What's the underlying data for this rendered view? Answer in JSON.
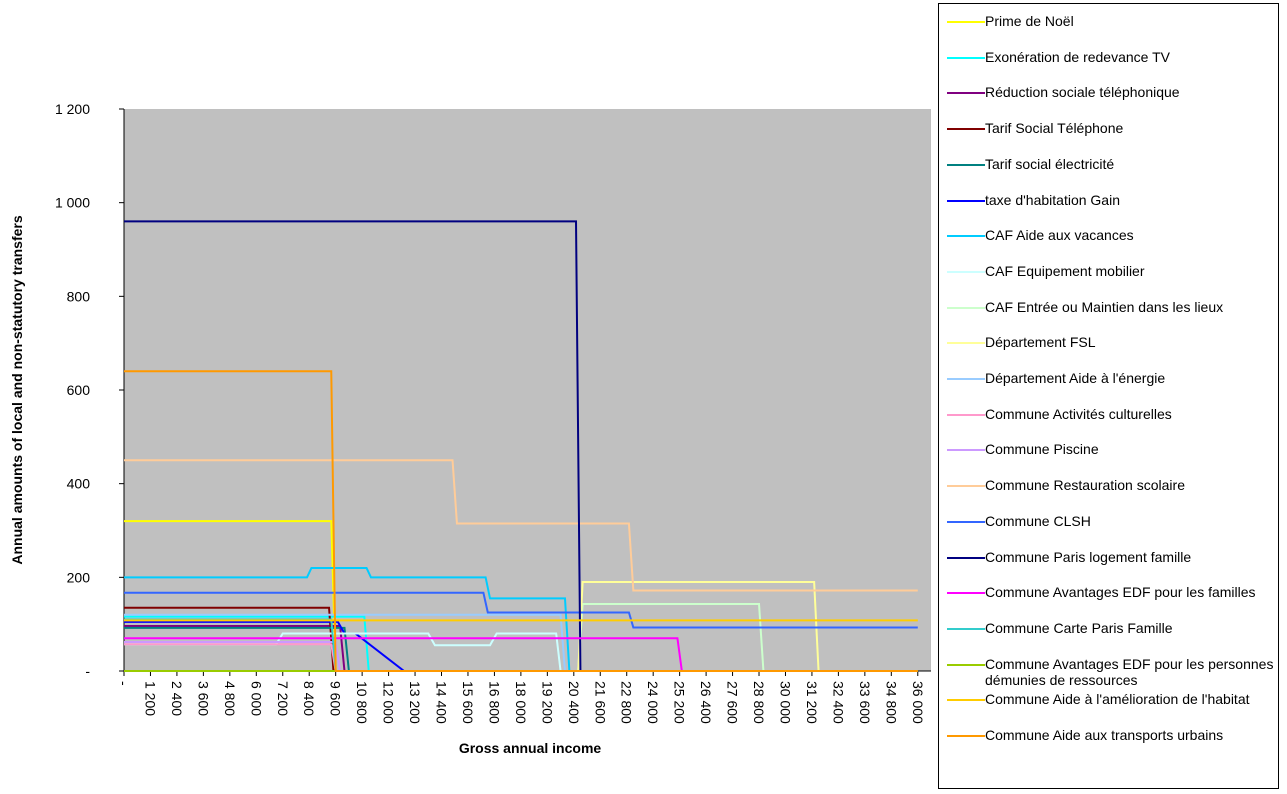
{
  "chart_data": {
    "type": "line",
    "x_label": "Gross annual income",
    "y_label": "Annual amounts of local and non-statutory transfers",
    "xlim": [
      0,
      36600
    ],
    "ylim": [
      0,
      1200
    ],
    "xticks": [
      {
        "value": 0,
        "label": "-"
      },
      {
        "value": 1200,
        "label": "1 200"
      },
      {
        "value": 2400,
        "label": "2 400"
      },
      {
        "value": 3600,
        "label": "3 600"
      },
      {
        "value": 4800,
        "label": "4 800"
      },
      {
        "value": 6000,
        "label": "6 000"
      },
      {
        "value": 7200,
        "label": "7 200"
      },
      {
        "value": 8400,
        "label": "8 400"
      },
      {
        "value": 9600,
        "label": "9 600"
      },
      {
        "value": 10800,
        "label": "10 800"
      },
      {
        "value": 12000,
        "label": "12 000"
      },
      {
        "value": 13200,
        "label": "13 200"
      },
      {
        "value": 14400,
        "label": "14 400"
      },
      {
        "value": 15600,
        "label": "15 600"
      },
      {
        "value": 16800,
        "label": "16 800"
      },
      {
        "value": 18000,
        "label": "18 000"
      },
      {
        "value": 19200,
        "label": "19 200"
      },
      {
        "value": 20400,
        "label": "20 400"
      },
      {
        "value": 21600,
        "label": "21 600"
      },
      {
        "value": 22800,
        "label": "22 800"
      },
      {
        "value": 24000,
        "label": "24 000"
      },
      {
        "value": 25200,
        "label": "25 200"
      },
      {
        "value": 26400,
        "label": "26 400"
      },
      {
        "value": 27600,
        "label": "27 600"
      },
      {
        "value": 28800,
        "label": "28 800"
      },
      {
        "value": 30000,
        "label": "30 000"
      },
      {
        "value": 31200,
        "label": "31 200"
      },
      {
        "value": 32400,
        "label": "32 400"
      },
      {
        "value": 33600,
        "label": "33 600"
      },
      {
        "value": 34800,
        "label": "34 800"
      },
      {
        "value": 36000,
        "label": "36 000"
      }
    ],
    "yticks": [
      {
        "value": 0,
        "label": "-"
      },
      200,
      400,
      600,
      800,
      {
        "value": 1000,
        "label": "1 000"
      },
      {
        "value": 1200,
        "label": "1 200"
      }
    ],
    "plot_background": "#c0c0c0",
    "legend": "right",
    "series": [
      {
        "name": "Prime de Noël",
        "color": "#ffff00",
        "x": [
          0,
          9400,
          9600,
          36000
        ],
        "values": [
          320,
          320,
          0,
          0
        ]
      },
      {
        "name": "Exonération de redevance TV",
        "color": "#00ffff",
        "x": [
          0,
          10900,
          11100,
          36000
        ],
        "values": [
          116,
          116,
          0,
          0
        ]
      },
      {
        "name": "Réduction sociale téléphonique",
        "color": "#800080",
        "x": [
          0,
          9800,
          10000,
          36000
        ],
        "values": [
          96,
          96,
          0,
          0
        ]
      },
      {
        "name": "Tarif Social Téléphone",
        "color": "#800000",
        "x": [
          0,
          9300,
          9500,
          36000
        ],
        "values": [
          135,
          135,
          0,
          0
        ]
      },
      {
        "name": "Tarif  social électricité",
        "color": "#008080",
        "x": [
          0,
          10000,
          10200,
          36000
        ],
        "values": [
          92,
          92,
          0,
          0
        ]
      },
      {
        "name": "taxe d'habitation Gain",
        "color": "#0000ff",
        "x": [
          0,
          9700,
          10000,
          10500,
          12700,
          36000
        ],
        "values": [
          105,
          105,
          80,
          80,
          0,
          0
        ]
      },
      {
        "name": "CAF Aide aux vacances",
        "color": "#00ccff",
        "x": [
          0,
          8300,
          8500,
          11000,
          11200,
          16400,
          16600,
          20000,
          20200,
          36000
        ],
        "values": [
          200,
          200,
          220,
          220,
          200,
          200,
          155,
          155,
          0,
          0
        ]
      },
      {
        "name": "CAF Equipement mobilier",
        "color": "#ccffff",
        "x": [
          0,
          6900,
          7200,
          13800,
          14100,
          16600,
          16900,
          19600,
          19800,
          36000
        ],
        "values": [
          57,
          57,
          80,
          80,
          55,
          55,
          80,
          80,
          0,
          0
        ]
      },
      {
        "name": "CAF Entrée ou Maintien dans les lieux",
        "color": "#ccffcc",
        "x": [
          0,
          20600,
          20800,
          28800,
          29000,
          36000
        ],
        "values": [
          0,
          0,
          143,
          143,
          0,
          0
        ]
      },
      {
        "name": "Département  FSL",
        "color": "#ffff99",
        "x": [
          0,
          20600,
          20800,
          31300,
          31500,
          36000
        ],
        "values": [
          0,
          0,
          190,
          190,
          0,
          0
        ]
      },
      {
        "name": "Département Aide à l'énergie",
        "color": "#99ccff",
        "x": [
          0,
          19800,
          20000,
          36000
        ],
        "values": [
          120,
          120,
          0,
          0
        ]
      },
      {
        "name": "Commune Activités culturelles",
        "color": "#ff99cc",
        "x": [
          0,
          9400,
          9600,
          36000
        ],
        "values": [
          57,
          57,
          0,
          0
        ]
      },
      {
        "name": "Commune Piscine",
        "color": "#cc99ff",
        "x": [
          0,
          9600,
          9800,
          36000
        ],
        "values": [
          62,
          62,
          0,
          0
        ]
      },
      {
        "name": "Commune Restauration scolaire",
        "color": "#ffcc99",
        "x": [
          0,
          14900,
          15100,
          22900,
          23100,
          36000
        ],
        "values": [
          450,
          450,
          315,
          315,
          172,
          172
        ]
      },
      {
        "name": "Commune CLSH",
        "color": "#3366ff",
        "x": [
          0,
          16300,
          16500,
          22900,
          23100,
          36000
        ],
        "values": [
          167,
          167,
          125,
          125,
          93,
          93
        ]
      },
      {
        "name": "Commune Paris logement famille",
        "color": "#000080",
        "x": [
          0,
          20500,
          20700,
          36000
        ],
        "values": [
          960,
          960,
          0,
          0
        ]
      },
      {
        "name": "Commune Avantages EDF pour les familles",
        "color": "#ff00ff",
        "x": [
          0,
          25100,
          25300,
          36000
        ],
        "values": [
          70,
          70,
          0,
          0
        ]
      },
      {
        "name": "Commune Carte Paris Famille",
        "color": "#33cccc",
        "x": [
          0,
          9400,
          9600,
          36000
        ],
        "values": [
          110,
          110,
          0,
          0
        ]
      },
      {
        "name": "Commune Avantages EDF pour les personnes démunies de ressources",
        "color": "#99cc00",
        "x": [
          0,
          36000
        ],
        "values": [
          0,
          0
        ]
      },
      {
        "name": "Commune Aide à l'amélioration de l'habitat",
        "color": "#ffcc00",
        "x": [
          0,
          36000
        ],
        "values": [
          108,
          108
        ]
      },
      {
        "name": "Commune Aide aux transports urbains",
        "color": "#ff9900",
        "x": [
          0,
          9400,
          9600,
          36000
        ],
        "values": [
          640,
          640,
          0,
          0
        ]
      }
    ]
  }
}
